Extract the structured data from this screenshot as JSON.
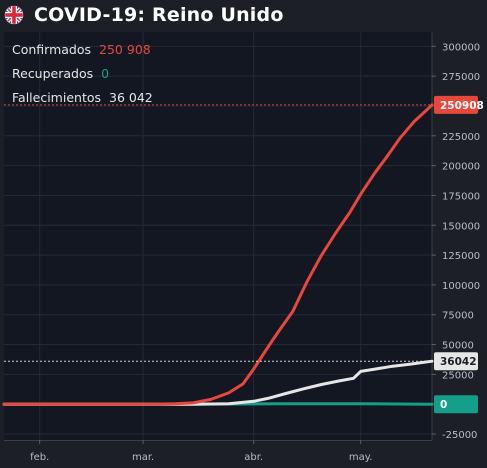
{
  "header": {
    "title": "COVID-19: Reino Unido",
    "flag_icon": "uk-flag-icon"
  },
  "legend": [
    {
      "label": "Confirmados",
      "value": "250 908",
      "color": "#e8473c"
    },
    {
      "label": "Recuperados",
      "value": "0",
      "color": "#159e89"
    },
    {
      "label": "Fallecimientos",
      "value": "36 042",
      "color": "#e6e6e6"
    }
  ],
  "colors": {
    "background": "#1c1f26",
    "plot_background": "#131722",
    "grid": "#252a36",
    "confirmed": "#e8473c",
    "recovered": "#159e89",
    "deaths": "#e6e6e6"
  },
  "chart_data": {
    "type": "line",
    "title": "COVID-19: Reino Unido",
    "x_ticks": [
      "feb.",
      "mar.",
      "abr.",
      "may."
    ],
    "y_ticks": [
      -25000,
      0,
      25000,
      50000,
      75000,
      100000,
      125000,
      150000,
      175000,
      200000,
      225000,
      250000,
      275000,
      300000
    ],
    "y_tick_labels": [
      "-25000",
      "0",
      "25000",
      "50000",
      "75000",
      "100000",
      "125000",
      "150000",
      "175000",
      "200000",
      "225000",
      "250000",
      "275000",
      "300000"
    ],
    "ylim": [
      -30000,
      312000
    ],
    "xlim": [
      "2020-01-22",
      "2020-05-21"
    ],
    "grid": true,
    "legend_position": "top-left",
    "series": [
      {
        "name": "Confirmados",
        "last_value_label": "250908",
        "x": [
          "2020-01-22",
          "2020-02-01",
          "2020-02-15",
          "2020-03-01",
          "2020-03-05",
          "2020-03-10",
          "2020-03-15",
          "2020-03-20",
          "2020-03-25",
          "2020-03-29",
          "2020-04-01",
          "2020-04-05",
          "2020-04-08",
          "2020-04-12",
          "2020-04-16",
          "2020-04-20",
          "2020-04-24",
          "2020-04-28",
          "2020-05-01",
          "2020-05-05",
          "2020-05-08",
          "2020-05-12",
          "2020-05-16",
          "2020-05-20",
          "2020-05-21"
        ],
        "y": [
          0,
          2,
          9,
          36,
          115,
          373,
          1140,
          4000,
          9500,
          17000,
          29500,
          47800,
          61000,
          78000,
          103000,
          124700,
          143500,
          161000,
          176000,
          194000,
          206000,
          223000,
          237000,
          248000,
          250908
        ]
      },
      {
        "name": "Recuperados",
        "last_value_label": "0",
        "x": [
          "2020-01-22",
          "2020-03-01",
          "2020-03-25",
          "2020-04-10",
          "2020-04-20",
          "2020-05-01",
          "2020-05-21"
        ],
        "y": [
          0,
          8,
          135,
          344,
          344,
          344,
          0
        ]
      },
      {
        "name": "Fallecimientos",
        "last_value_label": "36042",
        "x": [
          "2020-01-22",
          "2020-03-05",
          "2020-03-15",
          "2020-03-25",
          "2020-04-01",
          "2020-04-05",
          "2020-04-10",
          "2020-04-15",
          "2020-04-20",
          "2020-04-25",
          "2020-04-29",
          "2020-05-01",
          "2020-05-05",
          "2020-05-10",
          "2020-05-15",
          "2020-05-21"
        ],
        "y": [
          0,
          0,
          21,
          463,
          2400,
          4900,
          9000,
          12900,
          16500,
          19500,
          21700,
          27500,
          29400,
          31900,
          33600,
          36042
        ]
      }
    ]
  }
}
